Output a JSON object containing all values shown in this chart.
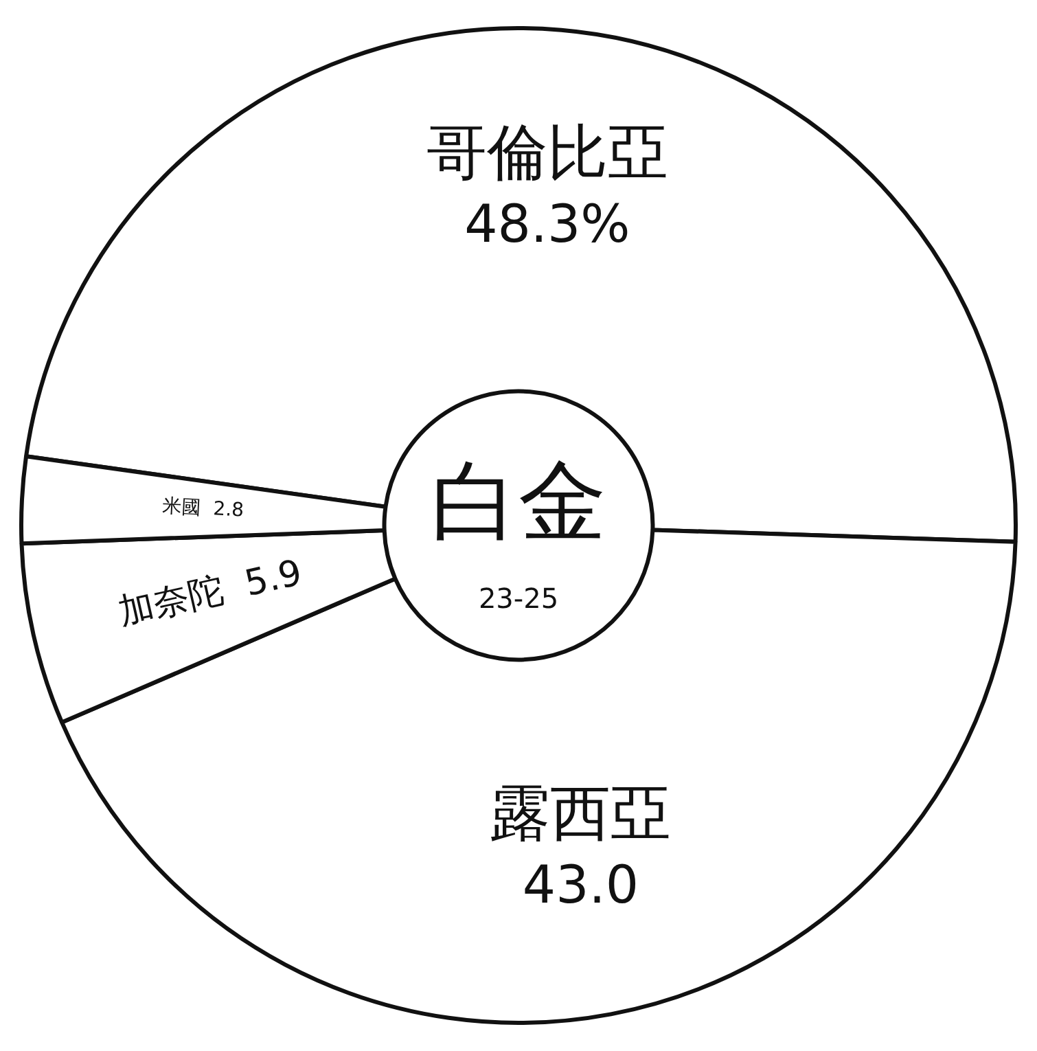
{
  "chart_data": {
    "type": "donut",
    "title": "白金",
    "subtitle": "23-25",
    "categories": [
      "哥倫比亞",
      "露西亞",
      "加奈陀",
      "米國"
    ],
    "values": [
      48.3,
      43.0,
      5.9,
      2.8
    ],
    "value_labels": [
      "48.3%",
      "43.0",
      "5.9",
      "2.8"
    ],
    "colors": [
      "#ffffff",
      "#ffffff",
      "#ffffff",
      "#ffffff"
    ]
  }
}
